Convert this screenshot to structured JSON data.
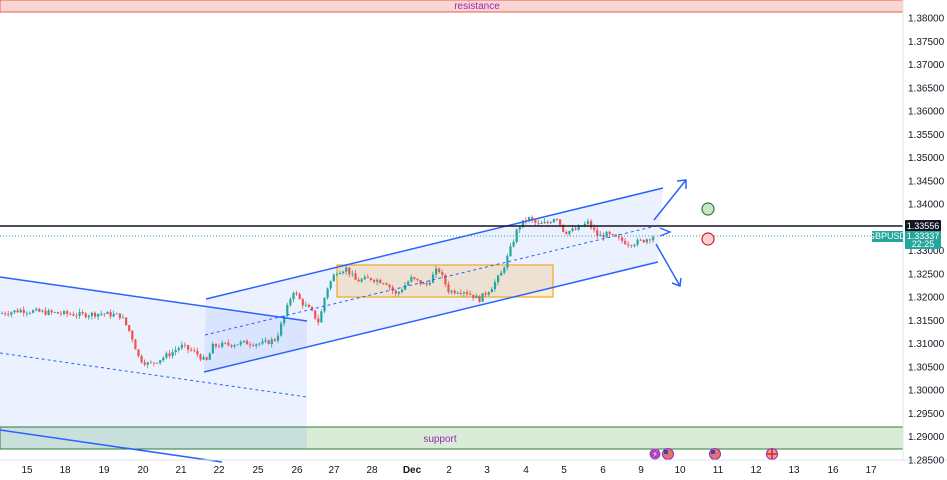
{
  "chart_data": {
    "type": "candlestick",
    "symbol": "GBPUSD",
    "current_price": "1.33337",
    "countdown": "22:25",
    "marked_level": "1.33556",
    "y_ticks": [
      "1.38000",
      "1.37500",
      "1.37000",
      "1.36500",
      "1.36000",
      "1.35500",
      "1.35000",
      "1.34500",
      "1.34000",
      "1.33000",
      "1.32500",
      "1.32000",
      "1.31500",
      "1.31000",
      "1.30500",
      "1.30000",
      "1.29500",
      "1.29000",
      "1.28500"
    ],
    "x_ticks": [
      "15",
      "18",
      "19",
      "20",
      "21",
      "22",
      "25",
      "26",
      "27",
      "28",
      "Dec",
      "2",
      "3",
      "4",
      "5",
      "6",
      "9",
      "10",
      "11",
      "12",
      "13",
      "16",
      "17"
    ],
    "ylim": [
      1.285,
      1.3815
    ],
    "zones": {
      "resistance": {
        "label": "resistance",
        "from": 1.38,
        "to": 1.3815,
        "color": "#f8d7d3",
        "border": "#f05a4f"
      },
      "support": {
        "label": "support",
        "from": 1.2868,
        "to": 1.2915,
        "color": "#d8ecd8",
        "border": "#2e7d32"
      }
    },
    "colors": {
      "up": "#26a69a",
      "down": "#ef5350",
      "channel": "#2962ff",
      "box": "#f5a623",
      "tag_dark": "#131722",
      "tag_blue": "#2962ff"
    },
    "candles": []
  }
}
